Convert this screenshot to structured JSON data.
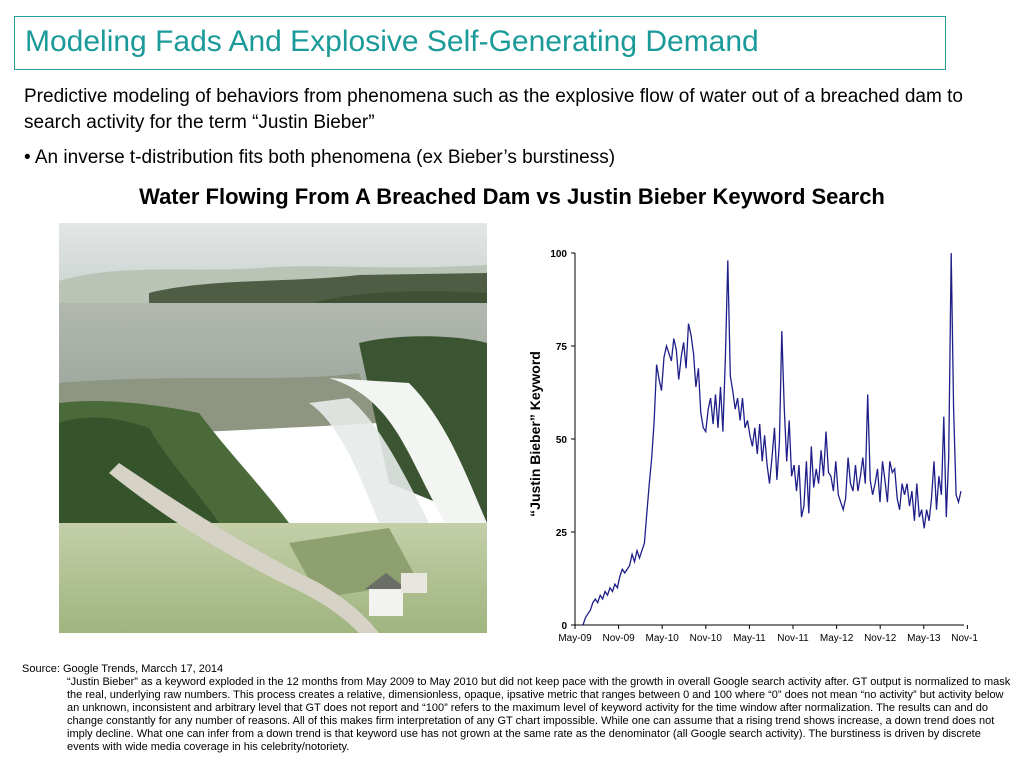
{
  "slide": {
    "title": "Modeling Fads And Explosive Self-Generating Demand",
    "intro": "Predictive modeling of behaviors from phenomena such as the explosive flow of water out of a breached dam to search activity for the term “Justin Bieber”",
    "bullet": "• An inverse t-distribution fits both phenomena (ex Bieber’s burstiness)",
    "chart_heading": "Water Flowing From A Breached Dam vs Justin Bieber Keyword Search",
    "source": "Source:  Google Trends, Marcch 17, 2014",
    "footnote": "“Justin Bieber” as a keyword exploded in the 12 months from May 2009 to May 2010 but did not keep pace with the growth in overall Google search activity after.  GT output is normalized to mask the real, underlying raw numbers.  This process creates a relative, dimensionless, opaque, ipsative metric that ranges between 0 and 100 where “0” does not  mean “no activity” but activity below an unknown, inconsistent and arbitrary level that GT does not report and “100” refers to the maximum level of keyword activity for the time window after normalization.  The results can and do change constantly for any number of reasons.   All of this makes firm interpretation of any GT chart impossible.  While one can assume that a rising trend shows increase, a down trend does not  imply decline.  What one can infer from a down trend is that keyword use has not grown at the same rate as the denominator (all Google search activity).  The burstiness is driven by discrete events with wide media coverage in his celebrity/notoriety."
  },
  "chart_data": {
    "type": "line",
    "title": "",
    "xlabel": "",
    "ylabel": "“Justin Bieber” Keyword",
    "ylim": [
      0,
      100
    ],
    "yticks": [
      0,
      25,
      50,
      75,
      100
    ],
    "xtick_labels": [
      "May-09",
      "Nov-09",
      "May-10",
      "Nov-10",
      "May-11",
      "Nov-11",
      "May-12",
      "Nov-12",
      "May-13",
      "Nov-13"
    ],
    "x_start": "2009-05",
    "x_end": "2014-03",
    "line_color": "#1f1f8a",
    "series": [
      {
        "name": "",
        "values": [
          0,
          2,
          3,
          4,
          6,
          7,
          6,
          8,
          7,
          9,
          8,
          10,
          9,
          11,
          10,
          13,
          15,
          14,
          15,
          16,
          19,
          17,
          20,
          18,
          20,
          22,
          30,
          38,
          45,
          55,
          70,
          66,
          63,
          72,
          75,
          73,
          71,
          77,
          74,
          66,
          72,
          76,
          69,
          81,
          78,
          73,
          64,
          69,
          57,
          53,
          52,
          58,
          61,
          54,
          62,
          53,
          64,
          52,
          72,
          98,
          67,
          63,
          58,
          61,
          55,
          61,
          53,
          55,
          51,
          48,
          53,
          46,
          54,
          44,
          51,
          43,
          38,
          45,
          53,
          39,
          49,
          79,
          58,
          44,
          55,
          40,
          43,
          36,
          43,
          29,
          32,
          44,
          30,
          48,
          37,
          42,
          38,
          47,
          40,
          52,
          41,
          40,
          36,
          44,
          35,
          33,
          31,
          34,
          45,
          38,
          36,
          43,
          36,
          40,
          45,
          38,
          62,
          39,
          35,
          38,
          42,
          33,
          44,
          39,
          33,
          44,
          41,
          42,
          34,
          31,
          38,
          35,
          38,
          32,
          36,
          28,
          38,
          29,
          31,
          26,
          31,
          28,
          34,
          44,
          31,
          40,
          35,
          56,
          29,
          45,
          100,
          58,
          35,
          33,
          36
        ]
      }
    ]
  },
  "photo": {
    "alt_icon": "breached-dam-photo"
  }
}
